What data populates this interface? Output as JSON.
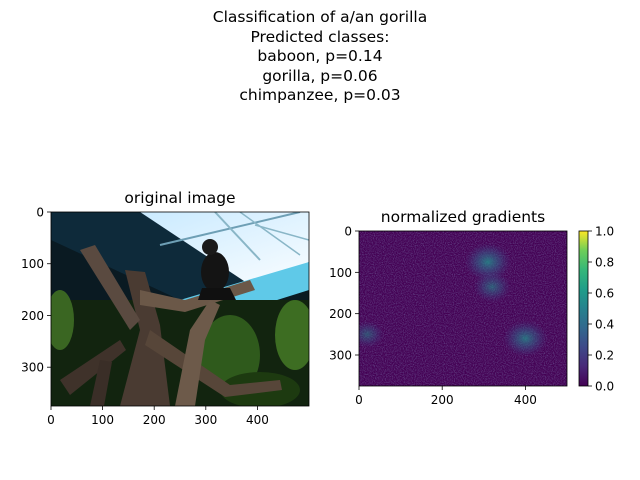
{
  "figure": {
    "title_lines": [
      "Classification of a/an gorilla",
      "Predicted classes:",
      "baboon, p=0.14",
      "gorilla, p=0.06",
      "chimpanzee, p=0.03"
    ]
  },
  "chart_data": [
    {
      "type": "image",
      "title": "original image",
      "xlim": [
        0,
        500
      ],
      "ylim": [
        375,
        0
      ],
      "xticks": [
        0,
        100,
        200,
        300,
        400
      ],
      "yticks": [
        0,
        100,
        200,
        300
      ]
    },
    {
      "type": "heatmap",
      "title": "normalized gradients",
      "xlim": [
        0,
        500
      ],
      "ylim": [
        375,
        0
      ],
      "xticks": [
        0,
        200,
        400
      ],
      "yticks": [
        0,
        100,
        200,
        300
      ],
      "colormap": "viridis",
      "colorbar": {
        "range": [
          0.0,
          1.0
        ],
        "ticks": [
          0.0,
          0.2,
          0.4,
          0.6,
          0.8,
          1.0
        ]
      },
      "hotspots": [
        {
          "x": 310,
          "y": 75,
          "value": 0.6
        },
        {
          "x": 320,
          "y": 135,
          "value": 0.4
        },
        {
          "x": 400,
          "y": 260,
          "value": 0.55
        },
        {
          "x": 20,
          "y": 250,
          "value": 0.3
        }
      ]
    }
  ]
}
